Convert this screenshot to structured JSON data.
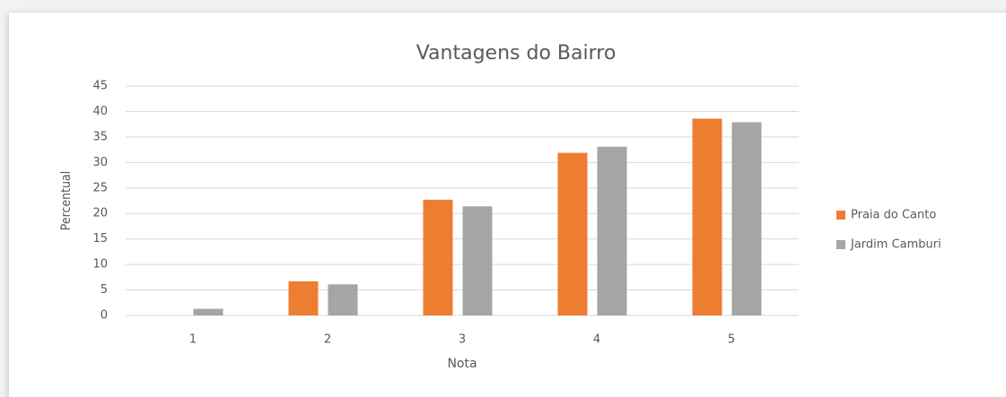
{
  "chart_data": {
    "type": "bar",
    "title": "Vantagens do Bairro",
    "x_label": "Nota",
    "y_label": "Percentual",
    "categories": [
      "1",
      "2",
      "3",
      "4",
      "5"
    ],
    "series": [
      {
        "name": "Praia do Canto",
        "color": "#ed7d31",
        "values": [
          0,
          6.7,
          22.7,
          31.9,
          38.6
        ]
      },
      {
        "name": "Jardim Camburi",
        "color": "#a5a5a5",
        "values": [
          1.3,
          6.1,
          21.4,
          33.1,
          37.9
        ]
      }
    ],
    "ylim": [
      0,
      45
    ],
    "yticks": [
      0,
      5,
      10,
      15,
      20,
      25,
      30,
      35,
      40,
      45
    ],
    "grid": true,
    "legend": "right"
  }
}
